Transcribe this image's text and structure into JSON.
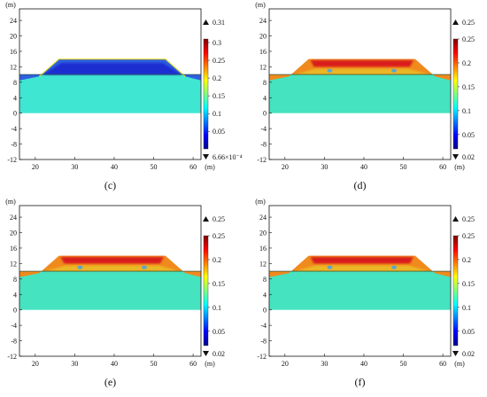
{
  "chart_data": [
    {
      "type": "heatmap",
      "caption": "(c)",
      "xlabel": "(m)",
      "ylabel": "(m)",
      "x_ticks": [
        20,
        30,
        40,
        50,
        60
      ],
      "y_ticks": [
        24,
        20,
        16,
        12,
        8,
        4,
        0,
        -4,
        -8,
        -12
      ],
      "xlim": [
        16,
        62
      ],
      "ylim": [
        -12,
        27
      ],
      "colorbar": {
        "max_label": "0.31",
        "min_label": "6.66×10⁻⁴",
        "ticks": [
          "0.3",
          "0.25",
          "0.2",
          "0.15",
          "0.1",
          "0.05"
        ],
        "tick_values": [
          0.3,
          0.25,
          0.2,
          0.15,
          0.1,
          0.05
        ],
        "range": [
          0.000666,
          0.31
        ]
      },
      "embankment": {
        "crest_elevation": 14,
        "top_x": [
          26,
          53
        ],
        "toe_x": [
          21,
          58
        ],
        "base_elevation": 10
      },
      "regions": [
        {
          "name": "foundation",
          "y": [
            0,
            10
          ],
          "value": 0.12
        },
        {
          "name": "embankment",
          "value": 0.02
        }
      ]
    },
    {
      "type": "heatmap",
      "caption": "(d)",
      "xlabel": "(m)",
      "ylabel": "(m)",
      "x_ticks": [
        20,
        30,
        40,
        50,
        60
      ],
      "y_ticks": [
        24,
        20,
        16,
        12,
        8,
        4,
        0,
        -4,
        -8,
        -12
      ],
      "xlim": [
        16,
        62
      ],
      "ylim": [
        -12,
        27
      ],
      "colorbar": {
        "max_label": "0.25",
        "min_label": "0.02",
        "ticks": [
          "0.25",
          "0.2",
          "0.15",
          "0.1",
          "0.05",
          "0.02"
        ],
        "tick_values": [
          0.25,
          0.2,
          0.15,
          0.1,
          0.05,
          0.02
        ],
        "range": [
          0.02,
          0.25
        ]
      },
      "embankment": {
        "crest_elevation": 14,
        "top_x": [
          26,
          53
        ],
        "toe_x": [
          21,
          58
        ],
        "base_elevation": 10
      },
      "regions": [
        {
          "name": "foundation",
          "y": [
            0,
            10
          ],
          "value": 0.14
        },
        {
          "name": "embankment",
          "value": 0.25
        }
      ]
    },
    {
      "type": "heatmap",
      "caption": "(e)",
      "xlabel": "(m)",
      "ylabel": "(m)",
      "x_ticks": [
        20,
        30,
        40,
        50,
        60
      ],
      "y_ticks": [
        24,
        20,
        16,
        12,
        8,
        4,
        0,
        -4,
        -8,
        -12
      ],
      "xlim": [
        16,
        62
      ],
      "ylim": [
        -12,
        27
      ],
      "colorbar": {
        "max_label": "0.25",
        "min_label": "0.02",
        "ticks": [
          "0.25",
          "0.2",
          "0.15",
          "0.1",
          "0.05",
          "0.02"
        ],
        "tick_values": [
          0.25,
          0.2,
          0.15,
          0.1,
          0.05,
          0.02
        ],
        "range": [
          0.02,
          0.25
        ]
      },
      "embankment": {
        "crest_elevation": 14,
        "top_x": [
          26,
          53
        ],
        "toe_x": [
          21,
          58
        ],
        "base_elevation": 10
      },
      "regions": [
        {
          "name": "foundation",
          "y": [
            0,
            10
          ],
          "value": 0.14
        },
        {
          "name": "embankment",
          "value": 0.25
        }
      ]
    },
    {
      "type": "heatmap",
      "caption": "(f)",
      "xlabel": "(m)",
      "ylabel": "(m)",
      "x_ticks": [
        20,
        30,
        40,
        50,
        60
      ],
      "y_ticks": [
        24,
        20,
        16,
        12,
        8,
        4,
        0,
        -4,
        -8,
        -12
      ],
      "xlim": [
        16,
        62
      ],
      "ylim": [
        -12,
        27
      ],
      "colorbar": {
        "max_label": "0.25",
        "min_label": "0.02",
        "ticks": [
          "0.25",
          "0.2",
          "0.15",
          "0.1",
          "0.05",
          "0.02"
        ],
        "tick_values": [
          0.25,
          0.2,
          0.15,
          0.1,
          0.05,
          0.02
        ],
        "range": [
          0.02,
          0.25
        ]
      },
      "embankment": {
        "crest_elevation": 14,
        "top_x": [
          26,
          53
        ],
        "toe_x": [
          21,
          58
        ],
        "base_elevation": 10
      },
      "regions": [
        {
          "name": "foundation",
          "y": [
            0,
            10
          ],
          "value": 0.14
        },
        {
          "name": "embankment",
          "value": 0.25
        }
      ]
    }
  ],
  "colors": {
    "foundation_c": "#3fe6d2",
    "foundation_def": "#45e3c0",
    "deep_blue": "#1a2fd0",
    "hot_red": "#d81e1e",
    "orange": "#f08a1c",
    "yellow": "#e6df2e",
    "frame": "#111111"
  }
}
